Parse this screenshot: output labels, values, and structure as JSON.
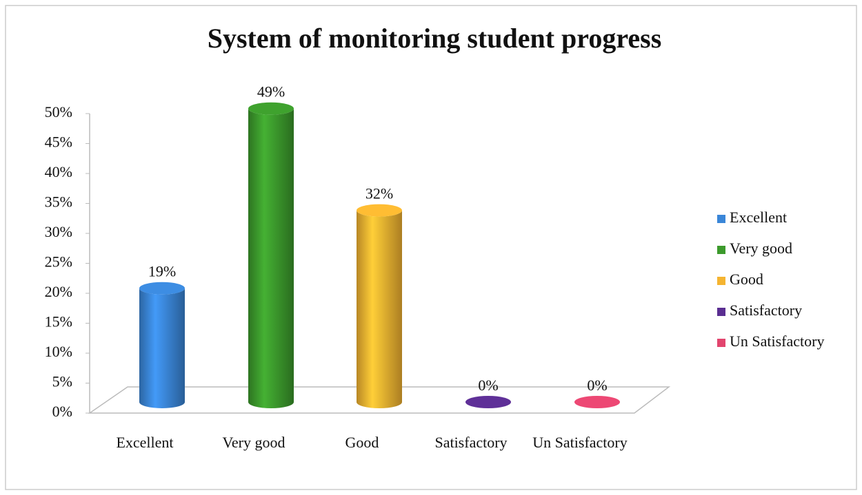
{
  "chart_data": {
    "type": "bar",
    "title": "System of monitoring student progress",
    "categories": [
      "Excellent",
      "Very good",
      "Good",
      "Satisfactory",
      "Un Satisfactory"
    ],
    "values": [
      19,
      49,
      32,
      0,
      0
    ],
    "value_labels": [
      "19%",
      "49%",
      "32%",
      "0%",
      "0%"
    ],
    "colors": [
      "#3a86d8",
      "#3c9a2c",
      "#f5b431",
      "#5a2e91",
      "#e2456e"
    ],
    "ylim": [
      0,
      50
    ],
    "yticks": [
      {
        "value": 0,
        "label": "0%"
      },
      {
        "value": 5,
        "label": "5%"
      },
      {
        "value": 10,
        "label": "10%"
      },
      {
        "value": 15,
        "label": "15%"
      },
      {
        "value": 20,
        "label": "20%"
      },
      {
        "value": 25,
        "label": "25%"
      },
      {
        "value": 30,
        "label": "30%"
      },
      {
        "value": 35,
        "label": "35%"
      },
      {
        "value": 40,
        "label": "40%"
      },
      {
        "value": 45,
        "label": "45%"
      },
      {
        "value": 50,
        "label": "50%"
      }
    ],
    "legend": "right"
  }
}
